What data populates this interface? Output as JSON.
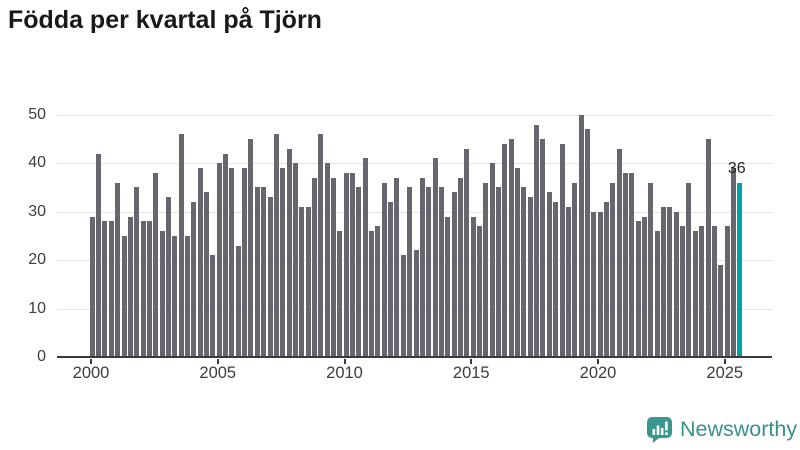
{
  "page": {
    "title": "Födda per kvartal på Tjörn"
  },
  "chart_data": {
    "type": "bar",
    "title": "Födda per kvartal på Tjörn",
    "x_start": "2000Q1",
    "x_end": "2025Q3",
    "x_tick_labels": [
      "2000",
      "2005",
      "2010",
      "2015",
      "2020",
      "2025"
    ],
    "y_ticks": [
      0,
      10,
      20,
      30,
      40,
      50
    ],
    "ylim": [
      0,
      50
    ],
    "grid": "horizontal",
    "legend": "none",
    "colors": {
      "bar": "#67666e",
      "highlight": "#00a1a6",
      "axis": "#3a3a3a",
      "gridline": "#e4e4e4",
      "title_text": "#191919",
      "tick_text": "#3d3d3d",
      "brand": "#38908a"
    },
    "values_by_year": {
      "2000": [
        29,
        42,
        28,
        28
      ],
      "2001": [
        36,
        25,
        29,
        35
      ],
      "2002": [
        28,
        28,
        38,
        26
      ],
      "2003": [
        33,
        25,
        46,
        25
      ],
      "2004": [
        32,
        39,
        34,
        21
      ],
      "2005": [
        40,
        42,
        39,
        23
      ],
      "2006": [
        39,
        45,
        35,
        35
      ],
      "2007": [
        33,
        46,
        39,
        43
      ],
      "2008": [
        40,
        31,
        31,
        37
      ],
      "2009": [
        46,
        40,
        37,
        26
      ],
      "2010": [
        38,
        38,
        35,
        41
      ],
      "2011": [
        26,
        27,
        36,
        32
      ],
      "2012": [
        37,
        21,
        35,
        22
      ],
      "2013": [
        37,
        35,
        41,
        35
      ],
      "2014": [
        29,
        34,
        37,
        43
      ],
      "2015": [
        29,
        27,
        36,
        40
      ],
      "2016": [
        35,
        44,
        45,
        39
      ],
      "2017": [
        35,
        33,
        48,
        45
      ],
      "2018": [
        34,
        32,
        44,
        31
      ],
      "2019": [
        36,
        50,
        47,
        30
      ],
      "2020": [
        30,
        32,
        36,
        43
      ],
      "2021": [
        38,
        38,
        28,
        29
      ],
      "2022": [
        36,
        26,
        31,
        31
      ],
      "2023": [
        30,
        27,
        36,
        26
      ],
      "2024": [
        27,
        45,
        27,
        19
      ],
      "2025": [
        27,
        39,
        36
      ]
    },
    "highlight": {
      "quarter": "2025Q3",
      "value": 36,
      "label": "36"
    }
  },
  "footer": {
    "brand": "Newsworthy"
  }
}
